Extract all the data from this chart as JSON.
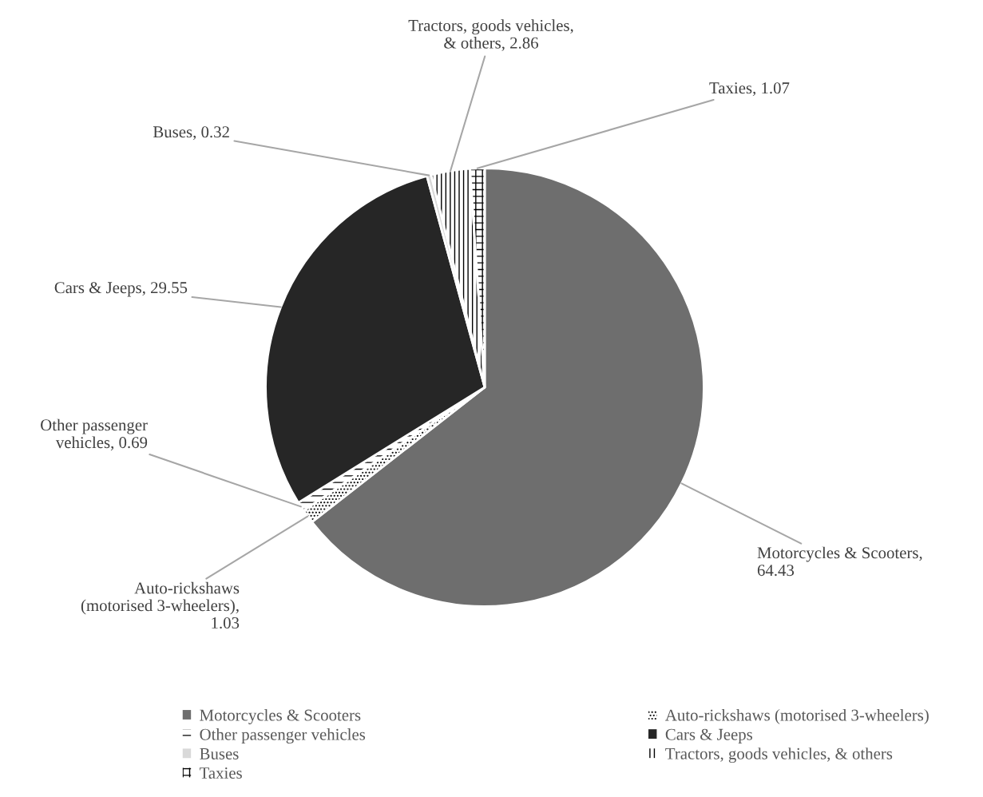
{
  "chart_data": {
    "type": "pie",
    "categories": [
      "Motorcycles & Scooters",
      "Auto-rickshaws (motorised 3-wheelers)",
      "Other passenger vehicles",
      "Cars & Jeeps",
      "Buses",
      "Tractors, goods vehicles, & others",
      "Taxies"
    ],
    "values": [
      64.43,
      1.03,
      0.69,
      29.55,
      0.32,
      2.86,
      1.07
    ],
    "colors": [
      "#6e6e6e",
      "#ffffff",
      "#ffffff",
      "#262626",
      "#d9d9d9",
      "#ffffff",
      "#ffffff"
    ],
    "value_labels": [
      "Motorcycles & Scooters, 64.43",
      "Auto-rickshaws (motorised 3-wheelers), 1.03",
      "Other passenger vehicles, 0.69",
      "Cars & Jeeps, 29.55",
      "Buses, 0.32",
      "Tractors, goods vehicles, & others, 2.86",
      "Taxies, 1.07"
    ],
    "legend": "bottom"
  }
}
